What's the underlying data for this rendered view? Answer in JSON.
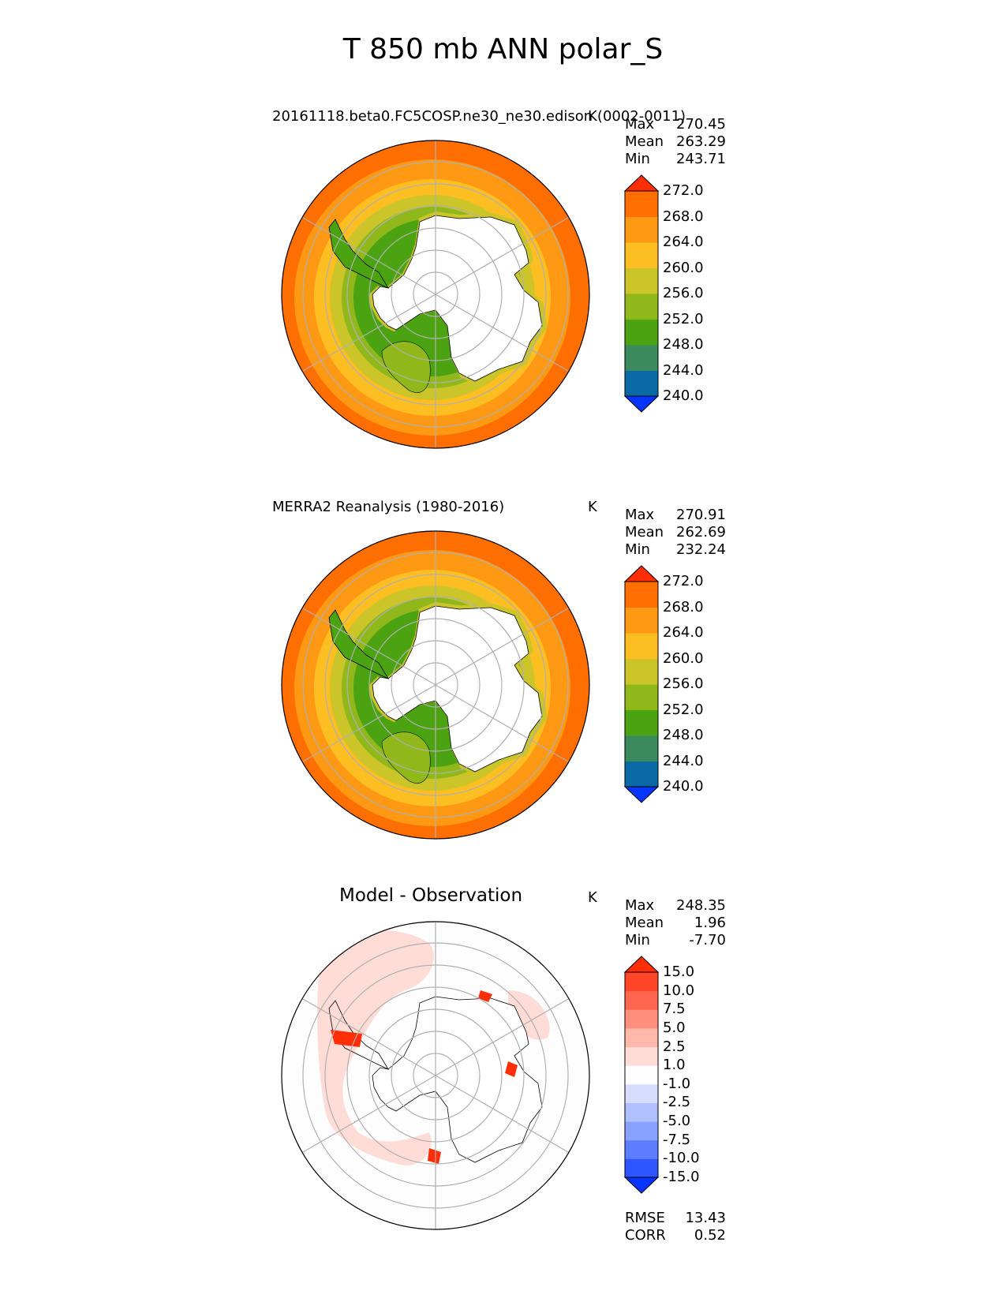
{
  "title": "T 850 mb ANN polar_S",
  "panels": [
    {
      "id": "test",
      "title": "20161118.beta0.FC5COSP.ne30_ne30.edison (0002-0011)",
      "units": "K",
      "stats": [
        {
          "label": "Max",
          "value": "270.45"
        },
        {
          "label": "Mean",
          "value": "263.29"
        },
        {
          "label": "Min",
          "value": "243.71"
        }
      ],
      "map": {
        "ring_colors": [
          "#ff6e00",
          "#ff9812",
          "#fdbe22",
          "#cbc52a",
          "#90b81b",
          "#4ba312"
        ],
        "variant": "model"
      }
    },
    {
      "id": "ref",
      "title": "MERRA2 Reanalysis (1980-2016)",
      "units": "K",
      "stats": [
        {
          "label": "Max",
          "value": "270.91"
        },
        {
          "label": "Mean",
          "value": "262.69"
        },
        {
          "label": "Min",
          "value": "232.24"
        }
      ],
      "map": {
        "ring_colors": [
          "#ff6e00",
          "#ff9812",
          "#fdbe22",
          "#cbc52a",
          "#90b81b",
          "#4ba312"
        ],
        "variant": "obs"
      }
    },
    {
      "id": "diff",
      "title": "Model - Observation",
      "units": "K",
      "stats": [
        {
          "label": "Max",
          "value": "248.35"
        },
        {
          "label": "Mean",
          "value": "1.96"
        },
        {
          "label": "Min",
          "value": "-7.70"
        }
      ],
      "footer": [
        {
          "label": "RMSE",
          "value": "13.43"
        },
        {
          "label": "CORR",
          "value": "0.52"
        }
      ],
      "map": {
        "variant": "diff"
      }
    }
  ],
  "chart_data": [
    {
      "type": "heatmap",
      "title": "20161118.beta0.FC5COSP.ne30_ne30.edison (0002-0011)",
      "projection": "south polar stereographic",
      "units": "K",
      "colorbar": {
        "levels": [
          240.0,
          244.0,
          248.0,
          252.0,
          256.0,
          260.0,
          264.0,
          268.0,
          272.0
        ],
        "colors": [
          "#0535ff",
          "#0a6aa6",
          "#3a8a5e",
          "#4ba312",
          "#90b81b",
          "#cbc52a",
          "#fdbe22",
          "#ff9812",
          "#ff6e00",
          "#ff2e05"
        ],
        "extend": "both"
      },
      "stats": {
        "max": 270.45,
        "mean": 263.29,
        "min": 243.71
      }
    },
    {
      "type": "heatmap",
      "title": "MERRA2 Reanalysis (1980-2016)",
      "projection": "south polar stereographic",
      "units": "K",
      "colorbar": {
        "levels": [
          240.0,
          244.0,
          248.0,
          252.0,
          256.0,
          260.0,
          264.0,
          268.0,
          272.0
        ],
        "colors": [
          "#0535ff",
          "#0a6aa6",
          "#3a8a5e",
          "#4ba312",
          "#90b81b",
          "#cbc52a",
          "#fdbe22",
          "#ff9812",
          "#ff6e00",
          "#ff2e05"
        ],
        "extend": "both"
      },
      "stats": {
        "max": 270.91,
        "mean": 262.69,
        "min": 232.24
      }
    },
    {
      "type": "heatmap",
      "title": "Model - Observation",
      "projection": "south polar stereographic",
      "units": "K",
      "colorbar": {
        "levels": [
          -15.0,
          -10.0,
          -7.5,
          -5.0,
          -2.5,
          -1.0,
          1.0,
          2.5,
          5.0,
          7.5,
          10.0,
          15.0
        ],
        "colors": [
          "#0535ff",
          "#2e55ff",
          "#5c7dff",
          "#8aa2ff",
          "#b0c0ff",
          "#d6ddff",
          "#ffffff",
          "#ffdcd6",
          "#ffb8aa",
          "#ff8f7c",
          "#ff6650",
          "#ff4528",
          "#ff2e05"
        ],
        "extend": "both"
      },
      "stats": {
        "max": 248.35,
        "mean": 1.96,
        "min": -7.7,
        "rmse": 13.43,
        "corr": 0.52
      }
    }
  ]
}
